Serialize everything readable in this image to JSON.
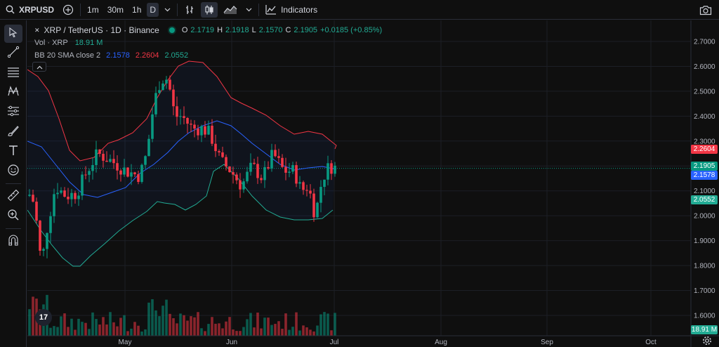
{
  "topbar": {
    "symbol": "XRPUSD",
    "timeframes": [
      "1m",
      "30m",
      "1h",
      "D"
    ],
    "active_timeframe": "D",
    "indicators_label": "Indicators"
  },
  "left_toolbar": {
    "tools": [
      "cursor-tool",
      "trend-line-tool",
      "fib-tool",
      "pattern-tool",
      "projection-tool",
      "brush-tool",
      "text-tool",
      "emoji-tool",
      "measure-tool",
      "zoom-tool",
      "magnet-tool"
    ]
  },
  "legend": {
    "logo_mark": "✕",
    "title": "XRP / TetherUS · 1D · Binance",
    "o_key": "O",
    "o_val": "2.1719",
    "h_key": "H",
    "h_val": "2.1918",
    "l_key": "L",
    "l_val": "2.1570",
    "c_key": "C",
    "c_val": "2.1905",
    "change": "+0.0185 (+0.85%)",
    "vol_label": "Vol · XRP",
    "vol_value": "18.91 M",
    "bb_label": "BB 20 SMA close 2",
    "bb_basis": "2.1578",
    "bb_upper": "2.2604",
    "bb_lower": "2.0552"
  },
  "price_scale": {
    "ticks": [
      "2.7000",
      "2.6000",
      "2.5000",
      "2.4000",
      "2.3000",
      "2.2000",
      "2.1000",
      "2.0000",
      "1.9000",
      "1.8000",
      "1.7000",
      "1.6000"
    ],
    "labels": {
      "upper": "2.2604",
      "current": "2.1905",
      "basis": "2.1578",
      "lower": "2.0552",
      "volume": "18.91 M"
    },
    "colors": {
      "upper": "#f23645",
      "current": "#089981",
      "basis": "#2962ff",
      "lower": "#22ab94",
      "volume": "#22ab94"
    }
  },
  "time_scale": {
    "ticks": [
      "May",
      "Jun",
      "Jul",
      "Aug",
      "Sep",
      "Oct"
    ]
  },
  "tv_logo": "17",
  "colors": {
    "up": "#089981",
    "down": "#f23645",
    "basis": "#2962ff",
    "upper": "#f23645",
    "lower": "#22ab94"
  }
}
